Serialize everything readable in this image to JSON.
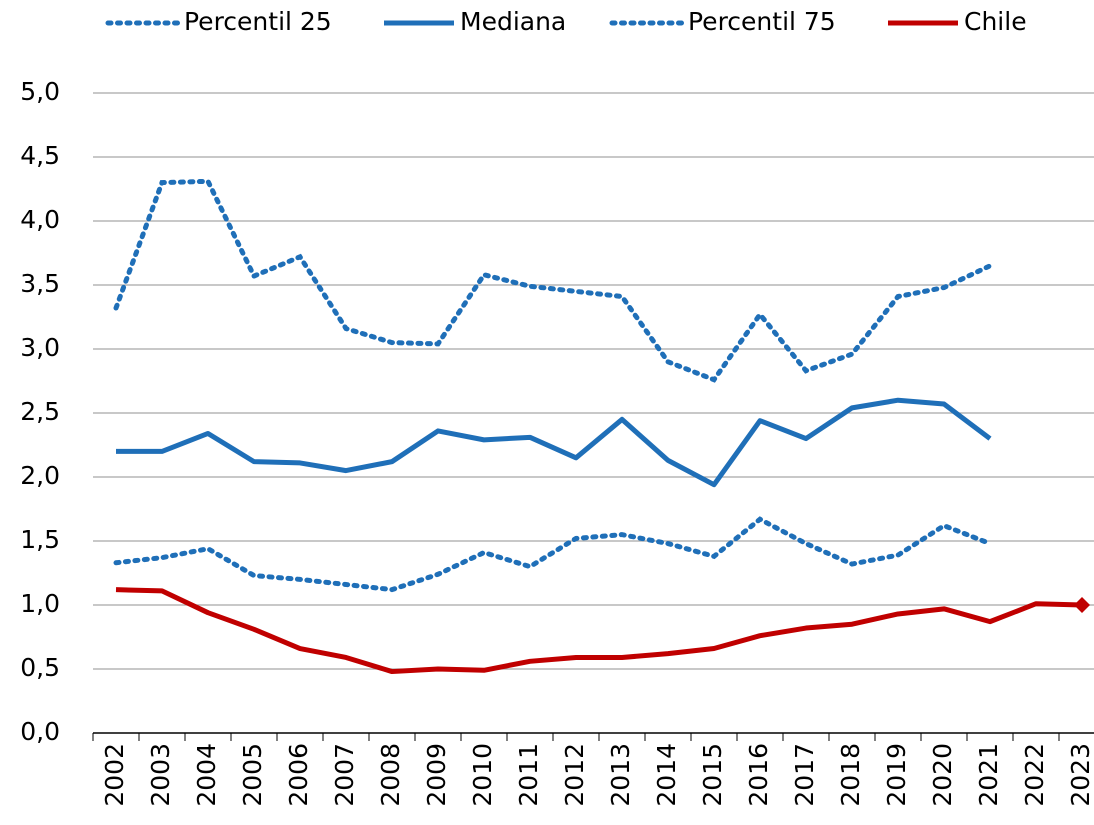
{
  "chart_data": {
    "type": "line",
    "categories": [
      "2002",
      "2003",
      "2004",
      "2005",
      "2006",
      "2007",
      "2008",
      "2009",
      "2010",
      "2011",
      "2012",
      "2013",
      "2014",
      "2015",
      "2016",
      "2017",
      "2018",
      "2019",
      "2020",
      "2021",
      "2022",
      "2023"
    ],
    "series": [
      {
        "name": "Percentil 25",
        "color": "#1f6fb8",
        "style": "dotted",
        "values": [
          1.33,
          1.37,
          1.44,
          1.23,
          1.2,
          1.16,
          1.12,
          1.24,
          1.41,
          1.3,
          1.52,
          1.55,
          1.48,
          1.38,
          1.67,
          1.48,
          1.32,
          1.39,
          1.62,
          1.48,
          null,
          null
        ]
      },
      {
        "name": "Mediana",
        "color": "#1f6fb8",
        "style": "solid",
        "values": [
          2.2,
          2.2,
          2.34,
          2.12,
          2.11,
          2.05,
          2.12,
          2.36,
          2.29,
          2.31,
          2.15,
          2.45,
          2.13,
          1.94,
          2.44,
          2.3,
          2.54,
          2.6,
          2.57,
          2.3,
          null,
          null
        ]
      },
      {
        "name": "Percentil 75",
        "color": "#1f6fb8",
        "style": "dotted",
        "values": [
          3.32,
          4.3,
          4.31,
          3.57,
          3.72,
          3.16,
          3.05,
          3.04,
          3.58,
          3.49,
          3.45,
          3.41,
          2.9,
          2.76,
          3.27,
          2.83,
          2.96,
          3.41,
          3.48,
          3.65,
          null,
          null
        ]
      },
      {
        "name": "Chile",
        "color": "#c00000",
        "style": "solid",
        "projection_start": 21,
        "values": [
          1.12,
          1.11,
          0.94,
          0.81,
          0.66,
          0.59,
          0.48,
          0.5,
          0.49,
          0.56,
          0.59,
          0.59,
          0.62,
          0.66,
          0.76,
          0.82,
          0.85,
          0.93,
          0.97,
          0.87,
          1.01,
          1.0
        ]
      }
    ],
    "ylim": [
      0,
      5
    ],
    "yticks": [
      {
        "value": 0,
        "label": "0,0"
      },
      {
        "value": 0.5,
        "label": "0,5"
      },
      {
        "value": 1,
        "label": "1,0"
      },
      {
        "value": 1.5,
        "label": "1,5"
      },
      {
        "value": 2,
        "label": "2,0"
      },
      {
        "value": 2.5,
        "label": "2,5"
      },
      {
        "value": 3,
        "label": "3,0"
      },
      {
        "value": 3.5,
        "label": "3,5"
      },
      {
        "value": 4,
        "label": "4,0"
      },
      {
        "value": 4.5,
        "label": "4,5"
      },
      {
        "value": 5,
        "label": "5,0"
      }
    ],
    "grid": true,
    "legend": "top"
  }
}
